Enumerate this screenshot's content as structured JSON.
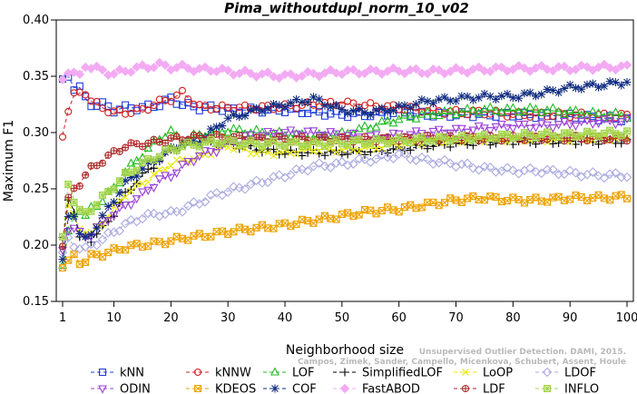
{
  "chart_data": {
    "type": "line",
    "title": "Pima_withoutdupl_norm_10_v02",
    "xlabel": "Neighborhood size",
    "ylabel": "Maximum F1",
    "xlim": [
      1,
      100
    ],
    "ylim": [
      0.15,
      0.4
    ],
    "xticks": [
      1,
      10,
      20,
      30,
      40,
      50,
      60,
      70,
      80,
      90,
      100
    ],
    "yticks": [
      0.15,
      0.2,
      0.25,
      0.3,
      0.35,
      0.4
    ],
    "ytick_labels": [
      "0.15",
      "0.20",
      "0.25",
      "0.30",
      "0.35",
      "0.40"
    ],
    "grid": false,
    "legend_position": "bottom",
    "x_anchors": [
      1,
      2,
      3,
      4,
      5,
      6,
      8,
      10,
      12,
      15,
      18,
      20,
      22,
      25,
      28,
      30,
      35,
      40,
      45,
      50,
      55,
      60,
      65,
      70,
      75,
      80,
      85,
      90,
      95,
      100
    ],
    "series": [
      {
        "name": "kNN",
        "color": "#1f3fd9",
        "marker": "square",
        "values": [
          0.345,
          0.35,
          0.34,
          0.34,
          0.33,
          0.325,
          0.325,
          0.32,
          0.322,
          0.322,
          0.325,
          0.33,
          0.325,
          0.322,
          0.322,
          0.32,
          0.32,
          0.32,
          0.318,
          0.316,
          0.316,
          0.318,
          0.316,
          0.316,
          0.316,
          0.316,
          0.315,
          0.315,
          0.313,
          0.312
        ]
      },
      {
        "name": "kNNW",
        "color": "#d42020",
        "marker": "circle",
        "values": [
          0.298,
          0.32,
          0.333,
          0.335,
          0.336,
          0.328,
          0.322,
          0.318,
          0.318,
          0.32,
          0.327,
          0.33,
          0.335,
          0.323,
          0.322,
          0.322,
          0.322,
          0.323,
          0.325,
          0.326,
          0.324,
          0.322,
          0.32,
          0.318,
          0.318,
          0.316,
          0.316,
          0.316,
          0.315,
          0.315
        ]
      },
      {
        "name": "LOF",
        "color": "#22bb22",
        "marker": "triangle",
        "values": [
          0.182,
          0.21,
          0.228,
          0.232,
          0.225,
          0.232,
          0.24,
          0.25,
          0.265,
          0.28,
          0.295,
          0.3,
          0.292,
          0.298,
          0.3,
          0.302,
          0.3,
          0.298,
          0.296,
          0.298,
          0.305,
          0.312,
          0.316,
          0.318,
          0.32,
          0.32,
          0.32,
          0.318,
          0.316,
          0.315
        ]
      },
      {
        "name": "SimplifiedLOF",
        "color": "#000000",
        "marker": "plus",
        "values": [
          0.205,
          0.242,
          0.23,
          0.205,
          0.208,
          0.205,
          0.215,
          0.228,
          0.245,
          0.262,
          0.275,
          0.285,
          0.288,
          0.292,
          0.29,
          0.29,
          0.285,
          0.282,
          0.282,
          0.282,
          0.283,
          0.285,
          0.288,
          0.29,
          0.291,
          0.292,
          0.292,
          0.292,
          0.292,
          0.292
        ]
      },
      {
        "name": "LoOP",
        "color": "#e8e800",
        "marker": "x",
        "values": [
          0.2,
          0.235,
          0.225,
          0.215,
          0.212,
          0.21,
          0.22,
          0.232,
          0.245,
          0.255,
          0.265,
          0.272,
          0.275,
          0.278,
          0.285,
          0.288,
          0.282,
          0.282,
          0.285,
          0.285,
          0.286,
          0.29,
          0.292,
          0.293,
          0.294,
          0.294,
          0.294,
          0.294,
          0.295,
          0.295
        ]
      },
      {
        "name": "LDOF",
        "color": "#aaaae0",
        "marker": "diamond",
        "values": [
          0.192,
          0.205,
          0.2,
          0.198,
          0.196,
          0.2,
          0.205,
          0.212,
          0.218,
          0.225,
          0.228,
          0.228,
          0.232,
          0.238,
          0.245,
          0.248,
          0.255,
          0.262,
          0.27,
          0.272,
          0.276,
          0.28,
          0.275,
          0.272,
          0.268,
          0.266,
          0.266,
          0.264,
          0.262,
          0.262
        ]
      },
      {
        "name": "ODIN",
        "color": "#9a40d8",
        "marker": "triangle-down",
        "values": [
          0.195,
          0.215,
          0.215,
          0.21,
          0.208,
          0.21,
          0.22,
          0.228,
          0.235,
          0.245,
          0.258,
          0.262,
          0.27,
          0.28,
          0.285,
          0.292,
          0.298,
          0.3,
          0.3,
          0.298,
          0.296,
          0.298,
          0.3,
          0.302,
          0.304,
          0.306,
          0.306,
          0.308,
          0.31,
          0.31
        ]
      },
      {
        "name": "KDEOS",
        "color": "#eea200",
        "marker": "square-x",
        "values": [
          0.182,
          0.185,
          0.19,
          0.185,
          0.186,
          0.19,
          0.192,
          0.195,
          0.198,
          0.2,
          0.202,
          0.204,
          0.206,
          0.208,
          0.21,
          0.212,
          0.215,
          0.218,
          0.222,
          0.226,
          0.23,
          0.232,
          0.236,
          0.24,
          0.242,
          0.24,
          0.24,
          0.242,
          0.242,
          0.243
        ]
      },
      {
        "name": "COF",
        "color": "#112c80",
        "marker": "asterisk",
        "values": [
          0.185,
          0.225,
          0.228,
          0.21,
          0.205,
          0.21,
          0.225,
          0.24,
          0.255,
          0.268,
          0.278,
          0.285,
          0.29,
          0.292,
          0.305,
          0.312,
          0.32,
          0.325,
          0.33,
          0.32,
          0.318,
          0.322,
          0.328,
          0.33,
          0.332,
          0.332,
          0.335,
          0.34,
          0.342,
          0.345
        ]
      },
      {
        "name": "FastABOD",
        "color": "#f3aaf3",
        "marker": "diamond-filled",
        "values": [
          0.348,
          0.355,
          0.352,
          0.35,
          0.36,
          0.358,
          0.355,
          0.352,
          0.355,
          0.358,
          0.36,
          0.358,
          0.358,
          0.356,
          0.356,
          0.354,
          0.352,
          0.35,
          0.352,
          0.354,
          0.354,
          0.355,
          0.354,
          0.355,
          0.356,
          0.357,
          0.357,
          0.357,
          0.358,
          0.358
        ]
      },
      {
        "name": "LDF",
        "color": "#b02a2a",
        "marker": "circle-plus",
        "values": [
          0.2,
          0.24,
          0.25,
          0.255,
          0.262,
          0.268,
          0.275,
          0.282,
          0.288,
          0.29,
          0.292,
          0.294,
          0.295,
          0.296,
          0.296,
          0.296,
          0.294,
          0.294,
          0.294,
          0.294,
          0.294,
          0.294,
          0.295,
          0.295,
          0.295,
          0.295,
          0.295,
          0.295,
          0.295,
          0.295
        ]
      },
      {
        "name": "INFLO",
        "color": "#a4d44a",
        "marker": "star-box",
        "values": [
          0.205,
          0.255,
          0.24,
          0.23,
          0.228,
          0.232,
          0.242,
          0.252,
          0.262,
          0.272,
          0.28,
          0.285,
          0.288,
          0.29,
          0.292,
          0.292,
          0.29,
          0.29,
          0.29,
          0.291,
          0.292,
          0.293,
          0.294,
          0.295,
          0.296,
          0.297,
          0.298,
          0.298,
          0.299,
          0.3
        ]
      }
    ]
  },
  "legend": {
    "entries": [
      "kNN",
      "kNNW",
      "LOF",
      "SimplifiedLOF",
      "LoOP",
      "LDOF",
      "ODIN",
      "KDEOS",
      "COF",
      "FastABOD",
      "LDF",
      "INFLO"
    ]
  },
  "watermark": {
    "line1": "Unsupervised Outlier Detection. DAMI, 2015.",
    "line2": "Campos, Zimek, Sander, Campello, Micenkova, Schubert, Assent, Houle"
  }
}
